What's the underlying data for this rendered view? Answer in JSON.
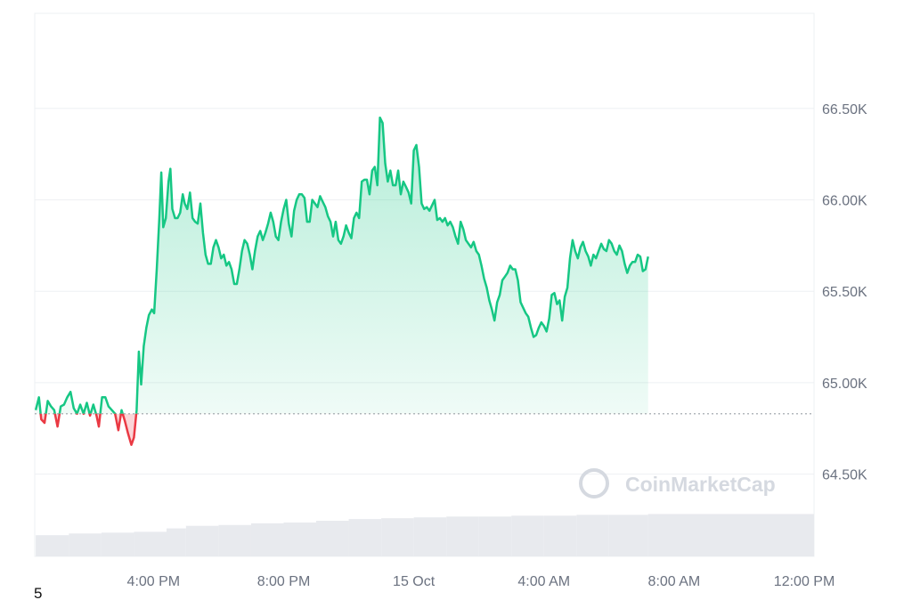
{
  "watermark": "CoinMarketCap",
  "corner_text": "5",
  "colors": {
    "up": "#16c784",
    "down": "#ea3943",
    "grid": "#eef0f3",
    "baseline_dots": "#9aa0a6",
    "volume": "#e8eaee"
  },
  "chart_data": {
    "type": "area",
    "title": "",
    "xlabel": "",
    "ylabel": "",
    "x_unit": "hours relative to 4:00 PM",
    "x_ticks": [
      {
        "x": 0,
        "label": "4:00 PM"
      },
      {
        "x": 4,
        "label": "8:00 PM"
      },
      {
        "x": 8,
        "label": "15 Oct"
      },
      {
        "x": 12,
        "label": "4:00 AM"
      },
      {
        "x": 16,
        "label": "8:00 AM"
      },
      {
        "x": 20,
        "label": "12:00 PM"
      }
    ],
    "y_ticks": [
      {
        "y": 64500,
        "label": "64.50K"
      },
      {
        "y": 65000,
        "label": "65.00K"
      },
      {
        "y": 65500,
        "label": "65.50K"
      },
      {
        "y": 66000,
        "label": "66.00K"
      },
      {
        "y": 66500,
        "label": "66.50K"
      }
    ],
    "xlim": [
      -3.65,
      20.3
    ],
    "ylim": [
      64050,
      67020
    ],
    "baseline": 64830,
    "grid": true,
    "axis_position": "right",
    "series": [
      {
        "values": [
          [
            -3.62,
            64850
          ],
          [
            -3.52,
            64920
          ],
          [
            -3.45,
            64800
          ],
          [
            -3.35,
            64780
          ],
          [
            -3.25,
            64900
          ],
          [
            -3.15,
            64870
          ],
          [
            -3.05,
            64850
          ],
          [
            -2.95,
            64760
          ],
          [
            -2.85,
            64870
          ],
          [
            -2.75,
            64880
          ],
          [
            -2.65,
            64920
          ],
          [
            -2.55,
            64950
          ],
          [
            -2.45,
            64860
          ],
          [
            -2.35,
            64830
          ],
          [
            -2.25,
            64880
          ],
          [
            -2.15,
            64830
          ],
          [
            -2.05,
            64890
          ],
          [
            -1.95,
            64820
          ],
          [
            -1.85,
            64880
          ],
          [
            -1.75,
            64820
          ],
          [
            -1.68,
            64760
          ],
          [
            -1.58,
            64920
          ],
          [
            -1.48,
            64920
          ],
          [
            -1.38,
            64870
          ],
          [
            -1.28,
            64850
          ],
          [
            -1.18,
            64830
          ],
          [
            -1.08,
            64740
          ],
          [
            -0.98,
            64850
          ],
          [
            -0.88,
            64790
          ],
          [
            -0.78,
            64720
          ],
          [
            -0.68,
            64660
          ],
          [
            -0.6,
            64700
          ],
          [
            -0.52,
            64850
          ],
          [
            -0.45,
            65170
          ],
          [
            -0.38,
            64990
          ],
          [
            -0.3,
            65200
          ],
          [
            -0.22,
            65300
          ],
          [
            -0.14,
            65370
          ],
          [
            -0.05,
            65400
          ],
          [
            0.02,
            65380
          ],
          [
            0.1,
            65620
          ],
          [
            0.18,
            65900
          ],
          [
            0.24,
            66150
          ],
          [
            0.3,
            65850
          ],
          [
            0.38,
            65900
          ],
          [
            0.46,
            66100
          ],
          [
            0.52,
            66170
          ],
          [
            0.58,
            65950
          ],
          [
            0.66,
            65900
          ],
          [
            0.74,
            65900
          ],
          [
            0.82,
            65930
          ],
          [
            0.9,
            66030
          ],
          [
            0.96,
            65980
          ],
          [
            1.04,
            65950
          ],
          [
            1.12,
            66040
          ],
          [
            1.2,
            65900
          ],
          [
            1.28,
            65880
          ],
          [
            1.36,
            65870
          ],
          [
            1.44,
            65980
          ],
          [
            1.52,
            65820
          ],
          [
            1.6,
            65700
          ],
          [
            1.68,
            65650
          ],
          [
            1.76,
            65650
          ],
          [
            1.84,
            65740
          ],
          [
            1.92,
            65780
          ],
          [
            2.0,
            65740
          ],
          [
            2.08,
            65680
          ],
          [
            2.16,
            65700
          ],
          [
            2.24,
            65640
          ],
          [
            2.32,
            65660
          ],
          [
            2.4,
            65620
          ],
          [
            2.48,
            65540
          ],
          [
            2.56,
            65540
          ],
          [
            2.64,
            65620
          ],
          [
            2.72,
            65720
          ],
          [
            2.8,
            65780
          ],
          [
            2.88,
            65760
          ],
          [
            2.96,
            65700
          ],
          [
            3.04,
            65620
          ],
          [
            3.12,
            65720
          ],
          [
            3.2,
            65800
          ],
          [
            3.28,
            65830
          ],
          [
            3.36,
            65780
          ],
          [
            3.44,
            65820
          ],
          [
            3.52,
            65870
          ],
          [
            3.6,
            65930
          ],
          [
            3.68,
            65880
          ],
          [
            3.76,
            65800
          ],
          [
            3.84,
            65780
          ],
          [
            3.92,
            65880
          ],
          [
            4.0,
            65950
          ],
          [
            4.08,
            66000
          ],
          [
            4.16,
            65870
          ],
          [
            4.24,
            65800
          ],
          [
            4.32,
            65940
          ],
          [
            4.4,
            66000
          ],
          [
            4.48,
            66030
          ],
          [
            4.56,
            66030
          ],
          [
            4.64,
            66010
          ],
          [
            4.72,
            65880
          ],
          [
            4.8,
            65880
          ],
          [
            4.88,
            66000
          ],
          [
            4.96,
            65980
          ],
          [
            5.04,
            65960
          ],
          [
            5.12,
            66020
          ],
          [
            5.2,
            65990
          ],
          [
            5.28,
            65960
          ],
          [
            5.36,
            65910
          ],
          [
            5.44,
            65880
          ],
          [
            5.52,
            65800
          ],
          [
            5.6,
            65880
          ],
          [
            5.68,
            65780
          ],
          [
            5.76,
            65760
          ],
          [
            5.84,
            65800
          ],
          [
            5.92,
            65860
          ],
          [
            6.0,
            65820
          ],
          [
            6.08,
            65790
          ],
          [
            6.16,
            65900
          ],
          [
            6.24,
            65930
          ],
          [
            6.32,
            65900
          ],
          [
            6.4,
            66100
          ],
          [
            6.48,
            66110
          ],
          [
            6.56,
            66110
          ],
          [
            6.64,
            66030
          ],
          [
            6.72,
            66160
          ],
          [
            6.8,
            66180
          ],
          [
            6.88,
            66080
          ],
          [
            6.96,
            66450
          ],
          [
            7.04,
            66420
          ],
          [
            7.12,
            66200
          ],
          [
            7.2,
            66100
          ],
          [
            7.28,
            66160
          ],
          [
            7.36,
            66080
          ],
          [
            7.44,
            66080
          ],
          [
            7.52,
            66160
          ],
          [
            7.6,
            66030
          ],
          [
            7.68,
            66100
          ],
          [
            7.76,
            66070
          ],
          [
            7.84,
            66040
          ],
          [
            7.92,
            65980
          ],
          [
            8.0,
            66270
          ],
          [
            8.08,
            66300
          ],
          [
            8.16,
            66180
          ],
          [
            8.24,
            65980
          ],
          [
            8.32,
            65950
          ],
          [
            8.4,
            65960
          ],
          [
            8.48,
            65940
          ],
          [
            8.56,
            65970
          ],
          [
            8.64,
            66000
          ],
          [
            8.72,
            65890
          ],
          [
            8.8,
            65900
          ],
          [
            8.88,
            65880
          ],
          [
            8.96,
            65900
          ],
          [
            9.04,
            65860
          ],
          [
            9.12,
            65880
          ],
          [
            9.2,
            65850
          ],
          [
            9.28,
            65800
          ],
          [
            9.36,
            65760
          ],
          [
            9.44,
            65880
          ],
          [
            9.52,
            65840
          ],
          [
            9.6,
            65780
          ],
          [
            9.68,
            65760
          ],
          [
            9.76,
            65740
          ],
          [
            9.84,
            65770
          ],
          [
            9.92,
            65720
          ],
          [
            10.0,
            65700
          ],
          [
            10.08,
            65640
          ],
          [
            10.16,
            65570
          ],
          [
            10.24,
            65520
          ],
          [
            10.32,
            65450
          ],
          [
            10.4,
            65400
          ],
          [
            10.48,
            65340
          ],
          [
            10.56,
            65440
          ],
          [
            10.64,
            65480
          ],
          [
            10.72,
            65560
          ],
          [
            10.8,
            65580
          ],
          [
            10.88,
            65600
          ],
          [
            10.96,
            65640
          ],
          [
            11.04,
            65620
          ],
          [
            11.12,
            65620
          ],
          [
            11.2,
            65560
          ],
          [
            11.28,
            65440
          ],
          [
            11.36,
            65410
          ],
          [
            11.44,
            65380
          ],
          [
            11.52,
            65360
          ],
          [
            11.6,
            65300
          ],
          [
            11.68,
            65250
          ],
          [
            11.76,
            65260
          ],
          [
            11.84,
            65300
          ],
          [
            11.92,
            65330
          ],
          [
            12.0,
            65310
          ],
          [
            12.08,
            65280
          ],
          [
            12.16,
            65350
          ],
          [
            12.24,
            65480
          ],
          [
            12.32,
            65490
          ],
          [
            12.4,
            65430
          ],
          [
            12.48,
            65450
          ],
          [
            12.56,
            65340
          ],
          [
            12.64,
            65470
          ],
          [
            12.72,
            65520
          ],
          [
            12.8,
            65680
          ],
          [
            12.88,
            65780
          ],
          [
            12.96,
            65720
          ],
          [
            13.04,
            65680
          ],
          [
            13.12,
            65740
          ],
          [
            13.2,
            65770
          ],
          [
            13.28,
            65720
          ],
          [
            13.36,
            65690
          ],
          [
            13.44,
            65640
          ],
          [
            13.52,
            65700
          ],
          [
            13.6,
            65680
          ],
          [
            13.68,
            65720
          ],
          [
            13.76,
            65760
          ],
          [
            13.84,
            65730
          ],
          [
            13.92,
            65720
          ],
          [
            14.0,
            65780
          ],
          [
            14.08,
            65760
          ],
          [
            14.16,
            65720
          ],
          [
            14.24,
            65700
          ],
          [
            14.32,
            65750
          ],
          [
            14.4,
            65720
          ],
          [
            14.48,
            65650
          ],
          [
            14.56,
            65600
          ],
          [
            14.64,
            65640
          ],
          [
            14.72,
            65660
          ],
          [
            14.8,
            65660
          ],
          [
            14.88,
            65700
          ],
          [
            14.96,
            65690
          ],
          [
            15.04,
            65610
          ],
          [
            15.12,
            65620
          ],
          [
            15.2,
            65690
          ]
        ]
      }
    ],
    "volume": [
      [
        -3.62,
        0.25
      ],
      [
        -2.6,
        0.27
      ],
      [
        -1.6,
        0.28
      ],
      [
        -0.6,
        0.29
      ],
      [
        0.4,
        0.33
      ],
      [
        1.0,
        0.36
      ],
      [
        2.0,
        0.37
      ],
      [
        3.0,
        0.39
      ],
      [
        4.0,
        0.4
      ],
      [
        5.0,
        0.42
      ],
      [
        6.0,
        0.44
      ],
      [
        7.0,
        0.45
      ],
      [
        8.0,
        0.46
      ],
      [
        9.0,
        0.47
      ],
      [
        10.0,
        0.47
      ],
      [
        11.0,
        0.48
      ],
      [
        12.0,
        0.48
      ],
      [
        13.0,
        0.49
      ],
      [
        14.0,
        0.49
      ],
      [
        15.2,
        0.5
      ]
    ]
  }
}
